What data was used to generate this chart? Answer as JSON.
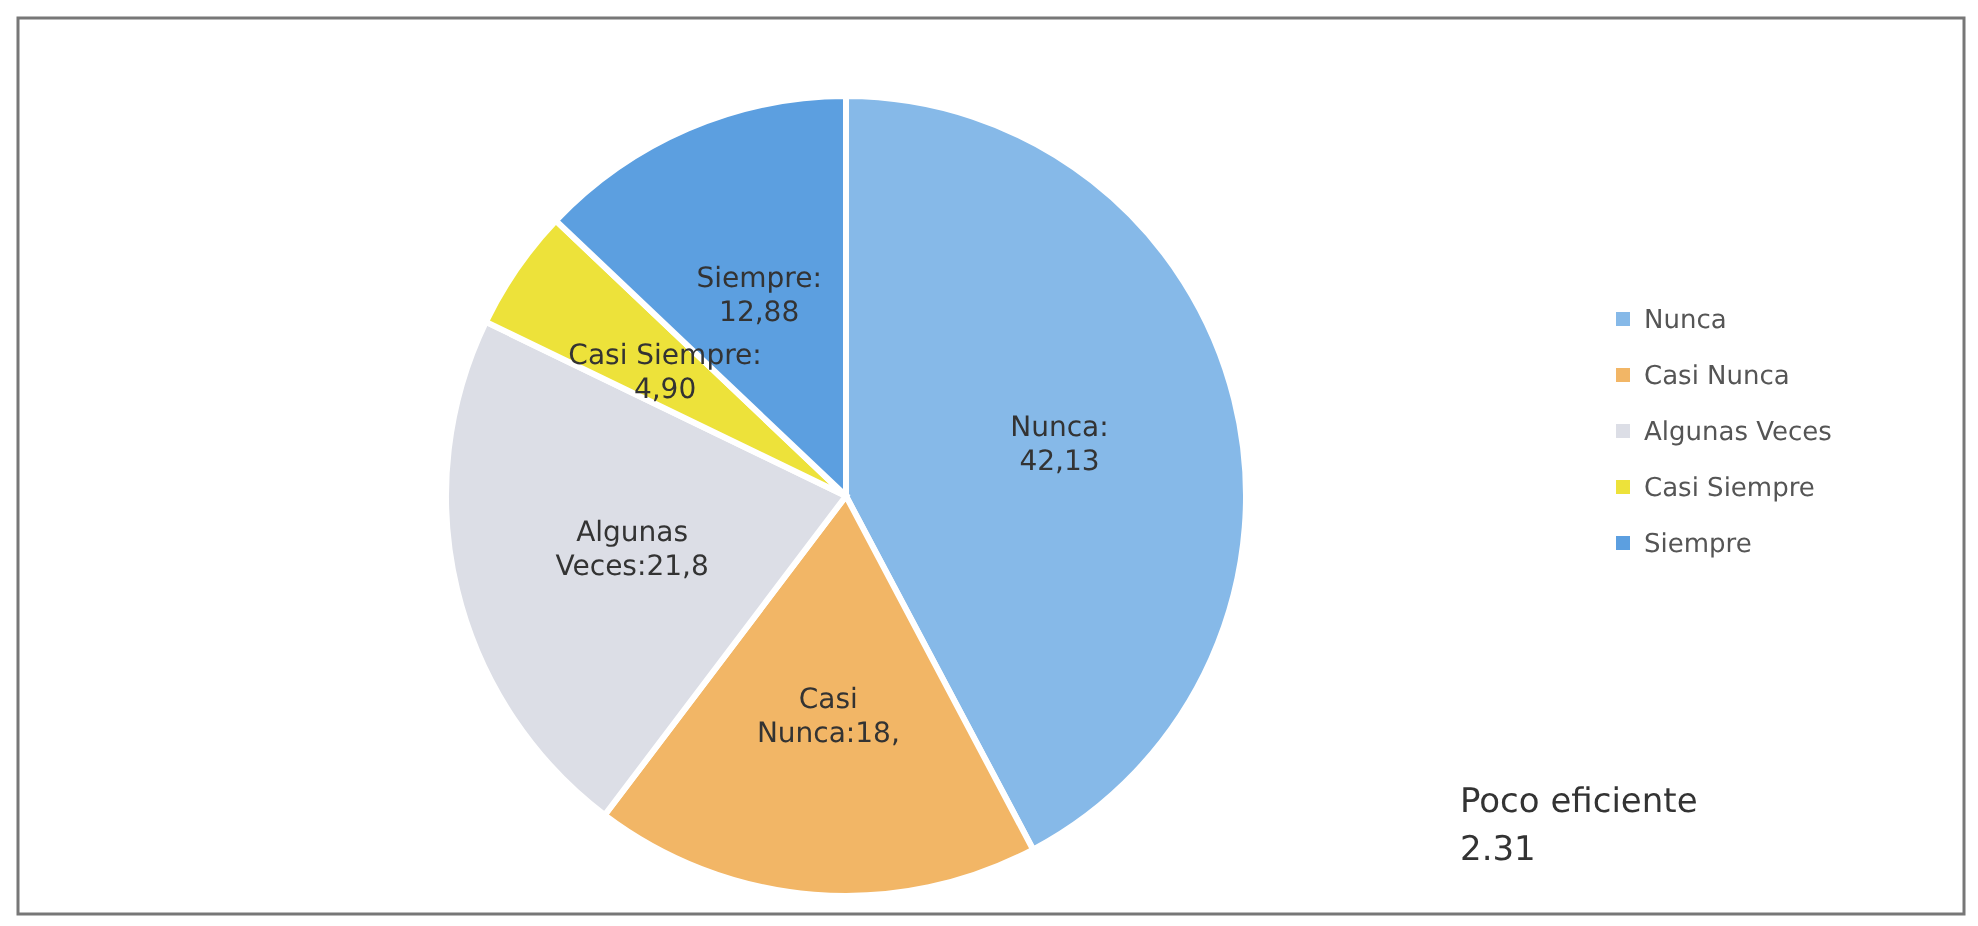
{
  "chart_data": {
    "type": "pie",
    "categories": [
      "Nunca",
      "Casi Nunca",
      "Algunas Veces",
      "Casi Siempre",
      "Siempre"
    ],
    "values": [
      42.13,
      18,
      21.8,
      4.9,
      12.88
    ],
    "colors": [
      "#86b9e8",
      "#f2b666",
      "#dcdee6",
      "#ede23a",
      "#5c9fe0"
    ],
    "value_labels": [
      "Nunca:\n42,13",
      "Casi\nNunca:18,",
      "Algunas\nVeces:21,8",
      "Casi Siempre:\n4,90",
      "Siempre:\n12,88"
    ],
    "annotations": [
      "Poco eficiente\n2.31"
    ],
    "legend": "right"
  }
}
